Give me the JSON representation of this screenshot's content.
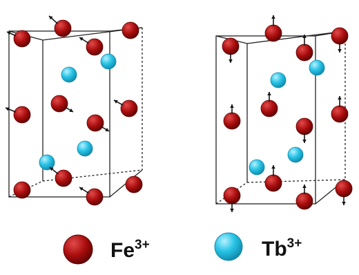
{
  "colors": {
    "fe_fill": "#a90d0d",
    "fe_highlight": "#e24a4a",
    "fe_edge": "#5c0404",
    "tb_fill": "#27c3e6",
    "tb_highlight": "#b6f1ff",
    "tb_edge": "#0f87a8",
    "edge_line": "#222222",
    "arrow": "#151515"
  },
  "legend": {
    "fe_base": "Fe",
    "fe_charge": "3+",
    "tb_base": "Tb",
    "tb_charge": "3+"
  }
}
